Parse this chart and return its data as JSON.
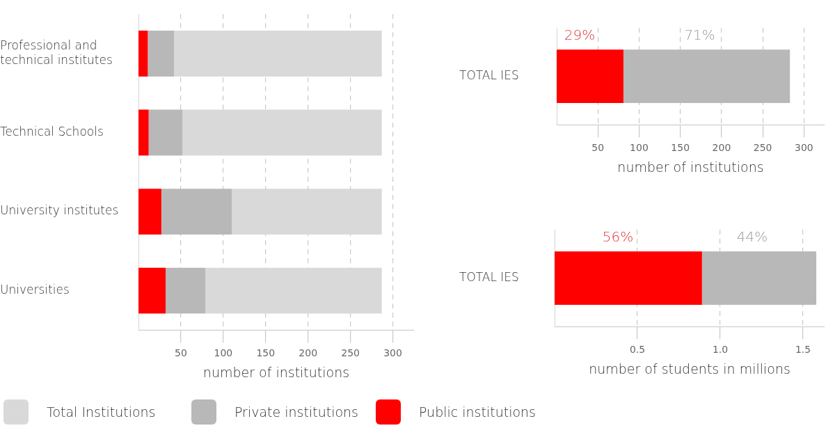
{
  "chart_data": [
    {
      "type": "bar",
      "orientation": "horizontal",
      "stacked": true,
      "categories": [
        "Professional and technical institutes",
        "Technical Schools",
        "University institutes",
        "Universities"
      ],
      "series": [
        {
          "name": "Public institutions",
          "color": "#ff0000",
          "values": [
            11,
            12,
            27,
            32
          ]
        },
        {
          "name": "Private institutions",
          "color": "#b8b8b8",
          "values": [
            31,
            40,
            83,
            47
          ]
        },
        {
          "name": "Total Institutions",
          "color": "#d9d9d9",
          "values": [
            245,
            235,
            177,
            208
          ]
        }
      ],
      "xlim": [
        0,
        325
      ],
      "xticks": [
        50,
        100,
        150,
        200,
        250,
        300
      ],
      "xlabel": "number of institutions",
      "grid": "x",
      "legend": "bottom"
    },
    {
      "type": "bar",
      "orientation": "horizontal",
      "stacked": true,
      "categories": [
        "TOTAL IES"
      ],
      "series": [
        {
          "color": "#ff0000",
          "values": [
            81
          ]
        },
        {
          "color": "#b8b8b8",
          "values": [
            202
          ]
        }
      ],
      "annotations": [
        "29%",
        "71%"
      ],
      "xlim": [
        0,
        325
      ],
      "xticks": [
        50,
        100,
        150,
        200,
        250,
        300
      ],
      "xlabel": "number of institutions",
      "grid": "x"
    },
    {
      "type": "bar",
      "orientation": "horizontal",
      "stacked": true,
      "categories": [
        "TOTAL IES"
      ],
      "series": [
        {
          "color": "#ff0000",
          "values": [
            0.89
          ]
        },
        {
          "color": "#b8b8b8",
          "values": [
            0.69
          ]
        }
      ],
      "annotations": [
        "56%",
        "44%"
      ],
      "xlim": [
        0,
        1.63
      ],
      "xticks": [
        0.5,
        {
          "value": 1,
          "label": "1.0"
        },
        1.5
      ],
      "xlabel": "number of students in millions",
      "grid": "x"
    }
  ]
}
